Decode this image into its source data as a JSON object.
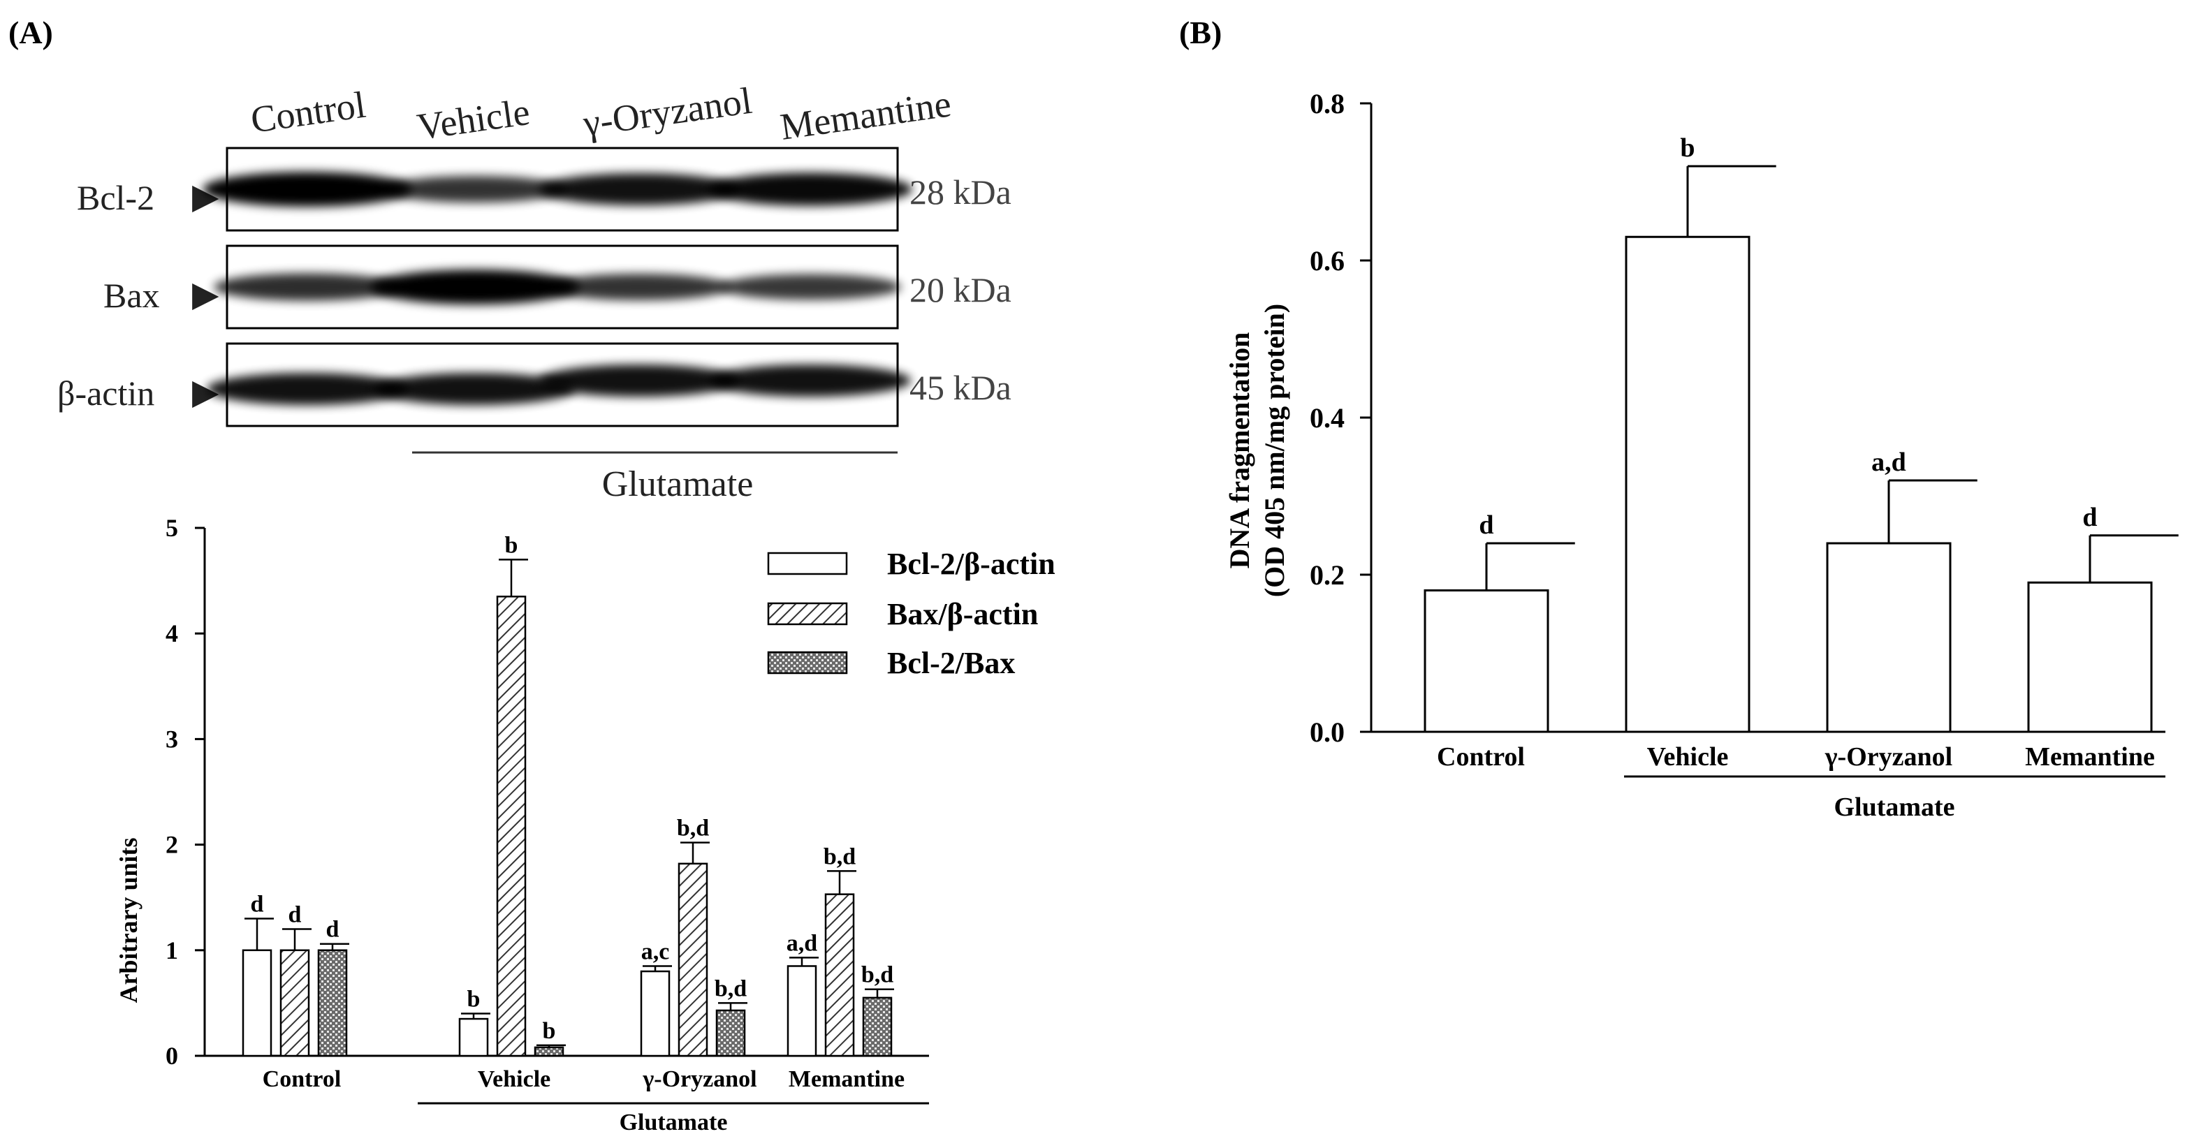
{
  "panel_a": {
    "label": "(A)",
    "western_blot": {
      "lanes": [
        "Control",
        "Vehicle",
        "γ-Oryzanol",
        "Memantine"
      ],
      "rows": [
        {
          "protein": "Bcl-2",
          "kda": "28 kDa",
          "intensity": [
            1.0,
            0.55,
            0.85,
            0.9
          ]
        },
        {
          "protein": "Bax",
          "kda": "20 kDa",
          "intensity": [
            0.6,
            1.0,
            0.55,
            0.5
          ]
        },
        {
          "protein": "β-actin",
          "kda": "45 kDa",
          "intensity": [
            0.85,
            0.85,
            0.85,
            0.85
          ]
        }
      ],
      "treatment_label": "Glutamate"
    }
  },
  "panel_b": {
    "label": "(B)"
  },
  "chart_data": [
    {
      "type": "bar",
      "id": "arbitrary-units",
      "title": "",
      "xlabel": "",
      "ylabel": "Arbitrary units",
      "ylim": [
        0,
        5
      ],
      "yticks": [
        "0",
        "1",
        "2",
        "3",
        "4",
        "5"
      ],
      "categories": [
        "Control",
        "Vehicle",
        "γ-Oryzanol",
        "Memantine"
      ],
      "group_label": "Glutamate",
      "legend_position": "top-right",
      "series": [
        {
          "name": "Bcl-2/β-actin",
          "pattern": "open",
          "values": [
            1.0,
            0.35,
            0.8,
            0.85
          ],
          "errors": [
            0.3,
            0.05,
            0.05,
            0.08
          ],
          "sig": [
            "d",
            "b",
            "a,c",
            "a,d"
          ]
        },
        {
          "name": "Bax/β-actin",
          "pattern": "hatched",
          "values": [
            1.0,
            4.35,
            1.82,
            1.53
          ],
          "errors": [
            0.2,
            0.35,
            0.2,
            0.22
          ],
          "sig": [
            "d",
            "b",
            "b,d",
            "b,d"
          ]
        },
        {
          "name": "Bcl-2/Bax",
          "pattern": "crosshatch",
          "values": [
            1.0,
            0.08,
            0.43,
            0.55
          ],
          "errors": [
            0.06,
            0.02,
            0.07,
            0.08
          ],
          "sig": [
            "d",
            "b",
            "b,d",
            "b,d"
          ]
        }
      ]
    },
    {
      "type": "bar",
      "id": "dna-fragmentation",
      "title": "",
      "xlabel": "",
      "ylabel": [
        "DNA fragmentation",
        "(OD 405 nm/mg protein)"
      ],
      "ylim": [
        0,
        0.8
      ],
      "yticks": [
        "0.0",
        "0.2",
        "0.4",
        "0.6",
        "0.8"
      ],
      "categories": [
        "Control",
        "Vehicle",
        "γ-Oryzanol",
        "Memantine"
      ],
      "group_label": "Glutamate",
      "values": [
        0.18,
        0.63,
        0.24,
        0.19
      ],
      "errors": [
        0.06,
        0.09,
        0.08,
        0.06
      ],
      "sig": [
        "d",
        "b",
        "a,d",
        "d"
      ]
    }
  ]
}
